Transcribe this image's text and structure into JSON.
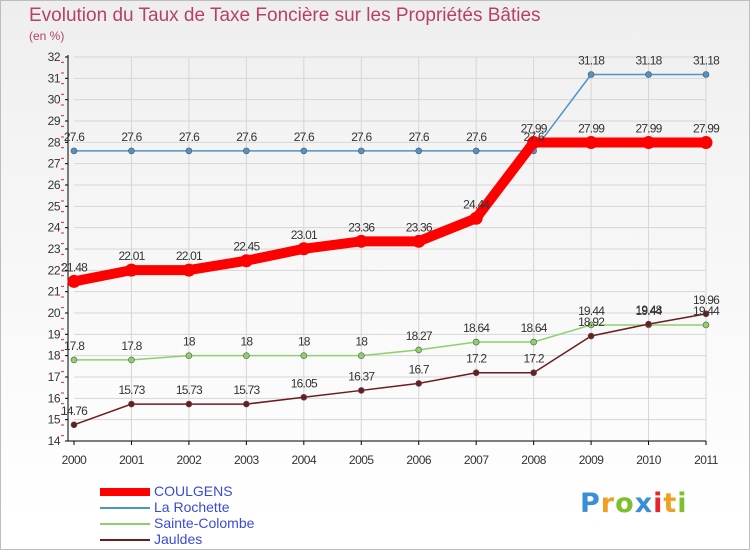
{
  "chart_data": {
    "type": "line",
    "title": "Evolution du Taux de Taxe Foncière sur les Propriétés Bâties",
    "subtitle": "(en %)",
    "xlabel": "",
    "ylabel": "(en %)",
    "x": [
      "2000",
      "2001",
      "2002",
      "2003",
      "2004",
      "2005",
      "2006",
      "2007",
      "2008",
      "2009",
      "2010",
      "2011"
    ],
    "ylim": [
      14,
      32
    ],
    "yticks": [
      14,
      15,
      16,
      17,
      18,
      19,
      20,
      21,
      22,
      23,
      24,
      25,
      26,
      27,
      28,
      29,
      30,
      31,
      32
    ],
    "grid": true,
    "legend_position": "bottom-left",
    "series": [
      {
        "name": "La Rochette",
        "color": "#4f94c9",
        "emphasis": false,
        "values": [
          27.6,
          27.6,
          27.6,
          27.6,
          27.6,
          27.6,
          27.6,
          27.6,
          27.6,
          31.18,
          31.18,
          31.18
        ],
        "labels": [
          "27.6",
          "27.6",
          "27.6",
          "27.6",
          "27.6",
          "27.6",
          "27.6",
          "27.6",
          "27.6",
          "31.18",
          "31.18",
          "31.18"
        ]
      },
      {
        "name": "Sainte-Colombe",
        "color": "#8ed16c",
        "emphasis": false,
        "values": [
          17.8,
          17.8,
          18,
          18,
          18,
          18,
          18.27,
          18.64,
          18.64,
          19.44,
          19.44,
          19.44
        ],
        "labels": [
          "17.8",
          "17.8",
          "18",
          "18",
          "18",
          "18",
          "18.27",
          "18.64",
          "18.64",
          "19.44",
          "19.44",
          "19.44"
        ]
      },
      {
        "name": "Jauldes",
        "color": "#6e1b20",
        "emphasis": false,
        "values": [
          14.76,
          15.73,
          15.73,
          15.73,
          16.05,
          16.37,
          16.7,
          17.2,
          17.2,
          18.92,
          19.48,
          19.96
        ],
        "labels": [
          "14.76",
          "15.73",
          "15.73",
          "15.73",
          "16.05",
          "16.37",
          "16.7",
          "17.2",
          "17.2",
          "18.92",
          "19.48",
          "19.96"
        ]
      },
      {
        "name": "COULGENS",
        "color": "#ff0000",
        "emphasis": true,
        "values": [
          21.48,
          22.01,
          22.01,
          22.45,
          23.01,
          23.36,
          23.36,
          24.44,
          27.99,
          27.99,
          27.99,
          27.99
        ],
        "labels": [
          "21.48",
          "22.01",
          "22.01",
          "22.45",
          "23.01",
          "23.36",
          "23.36",
          "24.44",
          "27.99",
          "27.99",
          "27.99",
          "27.99"
        ]
      }
    ]
  },
  "legend": [
    {
      "name": "COULGENS",
      "color": "#ff0000",
      "thick": true
    },
    {
      "name": "La Rochette",
      "color": "#4f94c9",
      "thick": false
    },
    {
      "name": "Sainte-Colombe",
      "color": "#8ed16c",
      "thick": false
    },
    {
      "name": "Jauldes",
      "color": "#6e1b20",
      "thick": false
    }
  ],
  "logo": {
    "text": "Proxiti",
    "letter_colors": [
      "#3a8fd6",
      "#f0a020",
      "#7fbf2a",
      "#3a8fd6",
      "#e8252a",
      "#f0a020",
      "#7fbf2a"
    ]
  }
}
